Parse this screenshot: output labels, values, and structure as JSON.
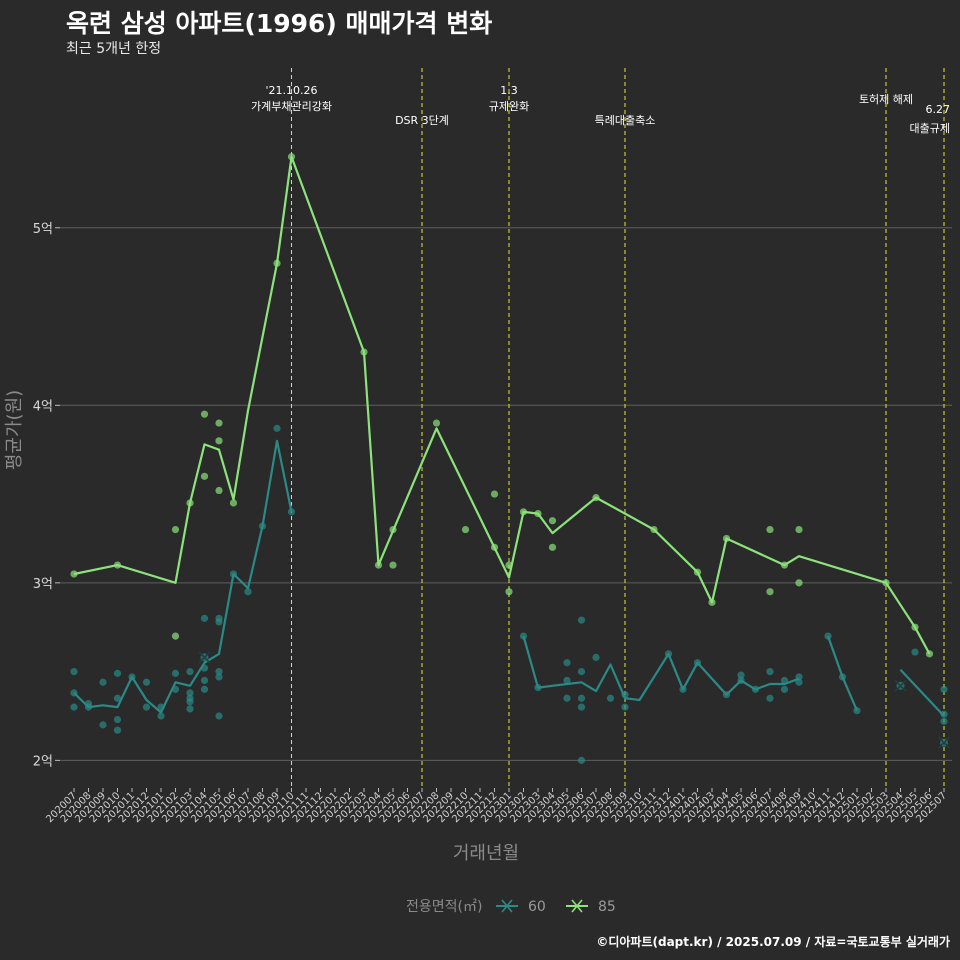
{
  "title": "옥련 삼성 아파트(1996) 매매가격 변화",
  "subtitle": "최근 5개년 한정",
  "caption": "©디아파트(dapt.kr) / 2025.07.09 / 자료=국토교통부 실거래가",
  "chart_data": {
    "type": "line",
    "xlabel": "거래년월",
    "ylabel": "평균가(원)",
    "ylim": [
      1.85,
      5.9
    ],
    "yticks": [
      {
        "v": 2,
        "label": "2억"
      },
      {
        "v": 3,
        "label": "3억"
      },
      {
        "v": 4,
        "label": "4억"
      },
      {
        "v": 5,
        "label": "5억"
      }
    ],
    "x": [
      "202007",
      "202008",
      "202009",
      "202010",
      "202011",
      "202012",
      "202101",
      "202102",
      "202103",
      "202104",
      "202105",
      "202106",
      "202107",
      "202108",
      "202109",
      "202110",
      "202111",
      "202112",
      "202201",
      "202202",
      "202203",
      "202204",
      "202205",
      "202206",
      "202207",
      "202208",
      "202209",
      "202210",
      "202211",
      "202212",
      "202301",
      "202302",
      "202303",
      "202304",
      "202305",
      "202306",
      "202307",
      "202308",
      "202309",
      "202310",
      "202311",
      "202312",
      "202401",
      "202402",
      "202403",
      "202404",
      "202405",
      "202406",
      "202407",
      "202408",
      "202409",
      "202410",
      "202411",
      "202412",
      "202501",
      "202502",
      "202503",
      "202504",
      "202505",
      "202506",
      "202507"
    ],
    "legend_title": "전용면적(㎡)",
    "grid": true,
    "series": [
      {
        "name": "60",
        "color": "#2a8a86",
        "line": [
          [
            0,
            2.38
          ],
          [
            1,
            2.3
          ],
          [
            2,
            2.31
          ],
          [
            3,
            2.3
          ],
          [
            4,
            2.47
          ],
          [
            5,
            2.34
          ],
          [
            6,
            2.27
          ],
          [
            7,
            2.44
          ],
          [
            8,
            2.42
          ],
          [
            9,
            2.55
          ],
          [
            10,
            2.6
          ],
          [
            11,
            3.05
          ],
          [
            12,
            2.97
          ],
          [
            13,
            3.32
          ],
          [
            14,
            3.8
          ],
          [
            15,
            3.4
          ],
          null,
          [
            31,
            2.7
          ],
          [
            32,
            2.41
          ],
          [
            33,
            2.42
          ],
          [
            34,
            2.43
          ],
          [
            35,
            2.44
          ],
          [
            36,
            2.39
          ],
          [
            37,
            2.54
          ],
          [
            38,
            2.35
          ],
          [
            39,
            2.34
          ],
          [
            41,
            2.6
          ],
          [
            42,
            2.4
          ],
          [
            43,
            2.55
          ],
          [
            45,
            2.37
          ],
          [
            46,
            2.45
          ],
          [
            47,
            2.4
          ],
          [
            48,
            2.43
          ],
          [
            49,
            2.43
          ],
          [
            50,
            2.46
          ],
          null,
          [
            52,
            2.7
          ],
          [
            53,
            2.47
          ],
          [
            54,
            2.28
          ],
          null,
          [
            57,
            2.51
          ],
          [
            60,
            2.25
          ]
        ],
        "points": [
          [
            0,
            2.5
          ],
          [
            0,
            2.38
          ],
          [
            0,
            2.3
          ],
          [
            1,
            2.32
          ],
          [
            1,
            2.3
          ],
          [
            2,
            2.44
          ],
          [
            2,
            2.2
          ],
          [
            3,
            2.49
          ],
          [
            3,
            2.35
          ],
          [
            3,
            2.23
          ],
          [
            3,
            2.17
          ],
          [
            4,
            2.47
          ],
          [
            5,
            2.3
          ],
          [
            5,
            2.44
          ],
          [
            6,
            2.25
          ],
          [
            6,
            2.3
          ],
          [
            7,
            2.49
          ],
          [
            7,
            2.4
          ],
          [
            8,
            2.5
          ],
          [
            8,
            2.38
          ],
          [
            8,
            2.35
          ],
          [
            8,
            2.33
          ],
          [
            8,
            2.29
          ],
          [
            9,
            2.8
          ],
          [
            9,
            2.52
          ],
          [
            9,
            2.45
          ],
          [
            9,
            2.4
          ],
          [
            10,
            2.8
          ],
          [
            10,
            2.78
          ],
          [
            10,
            2.5
          ],
          [
            10,
            2.47
          ],
          [
            10,
            2.25
          ],
          [
            11,
            3.05
          ],
          [
            12,
            2.95
          ],
          [
            13,
            3.32
          ],
          [
            14,
            3.87
          ],
          [
            15,
            3.4
          ],
          [
            31,
            2.7
          ],
          [
            32,
            2.41
          ],
          [
            34,
            2.55
          ],
          [
            34,
            2.45
          ],
          [
            34,
            2.35
          ],
          [
            35,
            2.79
          ],
          [
            35,
            2.5
          ],
          [
            35,
            2.35
          ],
          [
            35,
            2.3
          ],
          [
            35,
            2.0
          ],
          [
            36,
            2.58
          ],
          [
            37,
            2.35
          ],
          [
            38,
            2.37
          ],
          [
            38,
            2.3
          ],
          [
            41,
            2.6
          ],
          [
            42,
            2.4
          ],
          [
            43,
            2.55
          ],
          [
            45,
            2.37
          ],
          [
            46,
            2.48
          ],
          [
            46,
            2.45
          ],
          [
            47,
            2.4
          ],
          [
            48,
            2.5
          ],
          [
            48,
            2.35
          ],
          [
            49,
            2.45
          ],
          [
            49,
            2.4
          ],
          [
            50,
            2.47
          ],
          [
            50,
            2.44
          ],
          [
            52,
            2.7
          ],
          [
            53,
            2.47
          ],
          [
            54,
            2.28
          ],
          [
            58,
            2.61
          ],
          [
            60,
            2.4
          ],
          [
            60,
            2.26
          ],
          [
            60,
            2.22
          ]
        ],
        "crosses": [
          [
            9,
            2.58
          ],
          [
            57,
            2.42
          ],
          [
            60,
            2.1
          ]
        ]
      },
      {
        "name": "85",
        "color": "#8be37a",
        "line": [
          [
            0,
            3.05
          ],
          [
            3,
            3.1
          ],
          [
            7,
            3.0
          ],
          [
            8,
            3.45
          ],
          [
            9,
            3.78
          ],
          [
            10,
            3.75
          ],
          [
            11,
            3.47
          ],
          [
            12,
            3.97
          ],
          [
            14,
            4.8
          ],
          [
            15,
            5.4
          ],
          [
            20,
            4.3
          ],
          [
            21,
            3.1
          ],
          [
            25,
            3.87
          ],
          [
            30,
            3.03
          ],
          [
            31,
            3.4
          ],
          [
            32,
            3.39
          ],
          [
            33,
            3.28
          ],
          [
            36,
            3.48
          ],
          [
            40,
            3.3
          ],
          [
            43,
            3.06
          ],
          [
            44,
            2.89
          ],
          [
            45,
            3.25
          ],
          [
            49,
            3.1
          ],
          [
            50,
            3.15
          ],
          [
            56,
            3.0
          ],
          [
            58,
            2.75
          ],
          [
            59,
            2.6
          ]
        ],
        "points": [
          [
            0,
            3.05
          ],
          [
            3,
            3.1
          ],
          [
            7,
            3.3
          ],
          [
            7,
            2.7
          ],
          [
            8,
            3.45
          ],
          [
            9,
            3.95
          ],
          [
            9,
            3.6
          ],
          [
            10,
            3.9
          ],
          [
            10,
            3.8
          ],
          [
            10,
            3.52
          ],
          [
            11,
            3.45
          ],
          [
            14,
            4.8
          ],
          [
            15,
            5.4
          ],
          [
            20,
            4.3
          ],
          [
            21,
            3.1
          ],
          [
            22,
            3.3
          ],
          [
            22,
            3.1
          ],
          [
            25,
            3.9
          ],
          [
            27,
            3.3
          ],
          [
            29,
            3.5
          ],
          [
            29,
            3.2
          ],
          [
            30,
            3.1
          ],
          [
            30,
            2.95
          ],
          [
            31,
            3.4
          ],
          [
            32,
            3.39
          ],
          [
            33,
            3.35
          ],
          [
            33,
            3.2
          ],
          [
            36,
            3.48
          ],
          [
            40,
            3.3
          ],
          [
            43,
            3.06
          ],
          [
            44,
            2.89
          ],
          [
            45,
            3.25
          ],
          [
            48,
            3.3
          ],
          [
            48,
            2.95
          ],
          [
            49,
            3.1
          ],
          [
            50,
            3.3
          ],
          [
            50,
            3.0
          ],
          [
            56,
            3.0
          ],
          [
            58,
            2.75
          ],
          [
            59,
            2.6
          ]
        ],
        "crosses": []
      }
    ],
    "annotations": [
      {
        "x": 15,
        "lines": [
          "'21.10.26",
          "가계부채관리강화"
        ],
        "level": "top"
      },
      {
        "x": 24,
        "lines": [
          "DSR 3단계"
        ],
        "level": "low"
      },
      {
        "x": 30,
        "lines": [
          "1.3",
          "규제완화"
        ],
        "level": "top"
      },
      {
        "x": 38,
        "lines": [
          "특례대출축소"
        ],
        "level": "low"
      },
      {
        "x": 56,
        "lines": [
          "토허제 해제"
        ],
        "level": "mid"
      },
      {
        "x": 60,
        "lines": [
          "6.27",
          "대출규제"
        ],
        "level": "right"
      }
    ]
  }
}
